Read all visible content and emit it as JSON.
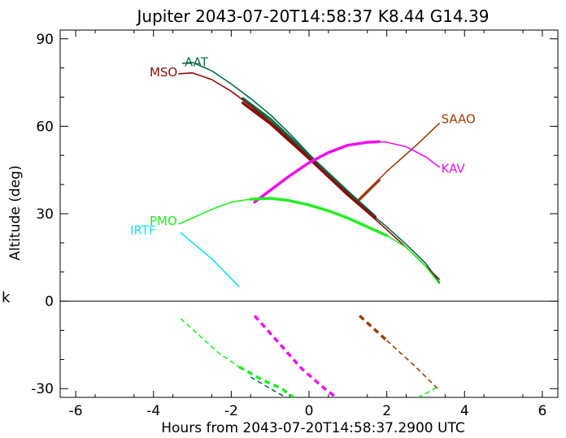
{
  "chart_data": {
    "type": "line",
    "title": "Jupiter 2043-07-20T14:58:37  K8.44  G14.39",
    "xlabel": "Hours from 2043-07-20T14:58:37.2900 UTC",
    "ylabel": "Altitude (deg)",
    "side_label": "k",
    "xlim": [
      -6.4,
      6.4
    ],
    "ylim": [
      -33,
      93
    ],
    "xticks": [
      -6,
      -4,
      -2,
      0,
      2,
      4,
      6
    ],
    "yticks": [
      -30,
      0,
      30,
      60,
      90
    ],
    "zero_line": true,
    "grid": false,
    "series": [
      {
        "name": "AAT",
        "color": "#0a6b45",
        "label_at": [
          -3.2,
          82.0
        ],
        "segments": [
          {
            "style": "solid",
            "width": 1.6,
            "points": [
              [
                -3.25,
                81.6
              ],
              [
                -3.0,
                81.9
              ],
              [
                -2.5,
                79.0
              ],
              [
                -2.0,
                74.5
              ],
              [
                -1.5,
                69.5
              ],
              [
                -1.0,
                64.0
              ],
              [
                -0.5,
                57.5
              ],
              [
                0.0,
                50.5
              ],
              [
                0.5,
                43.5
              ],
              [
                1.0,
                37.0
              ],
              [
                1.5,
                31.0
              ],
              [
                2.0,
                25.5
              ],
              [
                2.5,
                19.5
              ],
              [
                3.0,
                13.0
              ],
              [
                3.35,
                6.5
              ]
            ]
          },
          {
            "style": "solid",
            "width": 3.5,
            "points": [
              [
                -1.7,
                69.5
              ],
              [
                -1.0,
                62.5
              ],
              [
                0.0,
                50.0
              ],
              [
                1.0,
                37.5
              ],
              [
                1.7,
                29.0
              ]
            ]
          },
          {
            "style": "dashed",
            "width": 1.6,
            "points": [
              [
                -1.5,
                -26.0
              ],
              [
                -1.0,
                -30.0
              ],
              [
                -0.6,
                -33.0
              ]
            ]
          }
        ]
      },
      {
        "name": "MSO",
        "color": "#8b0a0a",
        "label_at": [
          -4.1,
          78.5
        ],
        "segments": [
          {
            "style": "solid",
            "width": 1.6,
            "points": [
              [
                -3.35,
                78.0
              ],
              [
                -3.0,
                78.3
              ],
              [
                -2.5,
                76.0
              ],
              [
                -2.0,
                72.0
              ],
              [
                -1.5,
                67.0
              ],
              [
                -1.0,
                61.5
              ],
              [
                -0.5,
                55.5
              ],
              [
                0.0,
                49.5
              ],
              [
                0.5,
                43.0
              ],
              [
                1.0,
                37.0
              ],
              [
                1.5,
                30.5
              ],
              [
                2.0,
                24.5
              ],
              [
                2.5,
                18.5
              ],
              [
                3.0,
                12.0
              ],
              [
                3.35,
                7.5
              ]
            ]
          },
          {
            "style": "solid",
            "width": 3.5,
            "points": [
              [
                -1.7,
                68.0
              ],
              [
                -1.0,
                61.0
              ],
              [
                0.0,
                49.0
              ],
              [
                1.0,
                36.5
              ],
              [
                1.7,
                28.5
              ]
            ]
          }
        ]
      },
      {
        "name": "SAAO",
        "color": "#9b3d0a",
        "label_at": [
          3.4,
          62.5
        ],
        "segments": [
          {
            "style": "solid",
            "width": 1.6,
            "points": [
              [
                1.3,
                35.0
              ],
              [
                2.0,
                44.5
              ],
              [
                2.8,
                54.0
              ],
              [
                3.35,
                61.0
              ]
            ]
          },
          {
            "style": "solid",
            "width": 3.5,
            "points": [
              [
                1.3,
                35.0
              ],
              [
                1.8,
                41.5
              ]
            ]
          },
          {
            "style": "dashed",
            "width": 3.5,
            "points": [
              [
                1.3,
                -5.0
              ],
              [
                2.0,
                -13.5
              ]
            ]
          },
          {
            "style": "dashed",
            "width": 1.6,
            "points": [
              [
                2.0,
                -13.5
              ],
              [
                2.7,
                -22.0
              ],
              [
                3.35,
                -30.5
              ]
            ]
          }
        ]
      },
      {
        "name": "KAV",
        "color": "#ee10ee",
        "label_at": [
          3.4,
          45.5
        ],
        "segments": [
          {
            "style": "solid",
            "width": 3.5,
            "points": [
              [
                -1.4,
                34.0
              ],
              [
                -1.0,
                38.0
              ],
              [
                -0.5,
                43.0
              ],
              [
                0.0,
                47.5
              ],
              [
                0.5,
                51.0
              ],
              [
                1.0,
                53.5
              ],
              [
                1.5,
                54.5
              ],
              [
                1.8,
                54.7
              ]
            ]
          },
          {
            "style": "solid",
            "width": 1.6,
            "points": [
              [
                1.8,
                54.7
              ],
              [
                2.0,
                54.5
              ],
              [
                2.5,
                53.0
              ],
              [
                3.0,
                49.5
              ],
              [
                3.35,
                46.0
              ]
            ]
          },
          {
            "style": "dashed",
            "width": 3.5,
            "points": [
              [
                -1.4,
                -5.0
              ],
              [
                -0.8,
                -14.0
              ],
              [
                -0.2,
                -23.0
              ],
              [
                0.4,
                -30.0
              ],
              [
                0.7,
                -33.0
              ]
            ]
          }
        ]
      },
      {
        "name": "PMO",
        "color": "#22ee22",
        "label_at": [
          -4.1,
          27.5
        ],
        "segments": [
          {
            "style": "solid",
            "width": 1.6,
            "points": [
              [
                -3.35,
                26.5
              ],
              [
                -3.0,
                28.5
              ],
              [
                -2.5,
                31.5
              ],
              [
                -2.0,
                34.0
              ],
              [
                -1.5,
                35.0
              ]
            ]
          },
          {
            "style": "solid",
            "width": 3.5,
            "points": [
              [
                -1.5,
                35.0
              ],
              [
                -1.0,
                35.3
              ],
              [
                -0.5,
                34.5
              ],
              [
                0.0,
                33.0
              ],
              [
                0.5,
                31.0
              ],
              [
                1.0,
                28.5
              ],
              [
                1.5,
                25.5
              ],
              [
                2.0,
                22.5
              ]
            ]
          },
          {
            "style": "solid",
            "width": 1.6,
            "points": [
              [
                2.0,
                22.5
              ],
              [
                2.5,
                18.5
              ],
              [
                3.0,
                12.0
              ],
              [
                3.35,
                6.0
              ]
            ]
          },
          {
            "style": "dashed",
            "width": 1.6,
            "points": [
              [
                -3.3,
                -6.0
              ],
              [
                -2.8,
                -12.0
              ],
              [
                -2.3,
                -18.0
              ],
              [
                -1.8,
                -22.5
              ]
            ]
          },
          {
            "style": "dashed",
            "width": 3.5,
            "points": [
              [
                -1.8,
                -22.5
              ],
              [
                -1.2,
                -27.0
              ],
              [
                -0.7,
                -30.0
              ],
              [
                -0.4,
                -33.0
              ]
            ]
          },
          {
            "style": "dashed",
            "width": 1.6,
            "points": [
              [
                2.8,
                -33.0
              ],
              [
                3.1,
                -31.0
              ],
              [
                3.35,
                -29.0
              ]
            ]
          }
        ]
      },
      {
        "name": "IRTF",
        "color": "#11e0ee",
        "label_at": [
          -4.6,
          24.3
        ],
        "segments": [
          {
            "style": "solid",
            "width": 1.6,
            "points": [
              [
                -3.3,
                23.5
              ],
              [
                -2.5,
                14.5
              ],
              [
                -1.8,
                5.0
              ]
            ]
          }
        ]
      }
    ]
  }
}
